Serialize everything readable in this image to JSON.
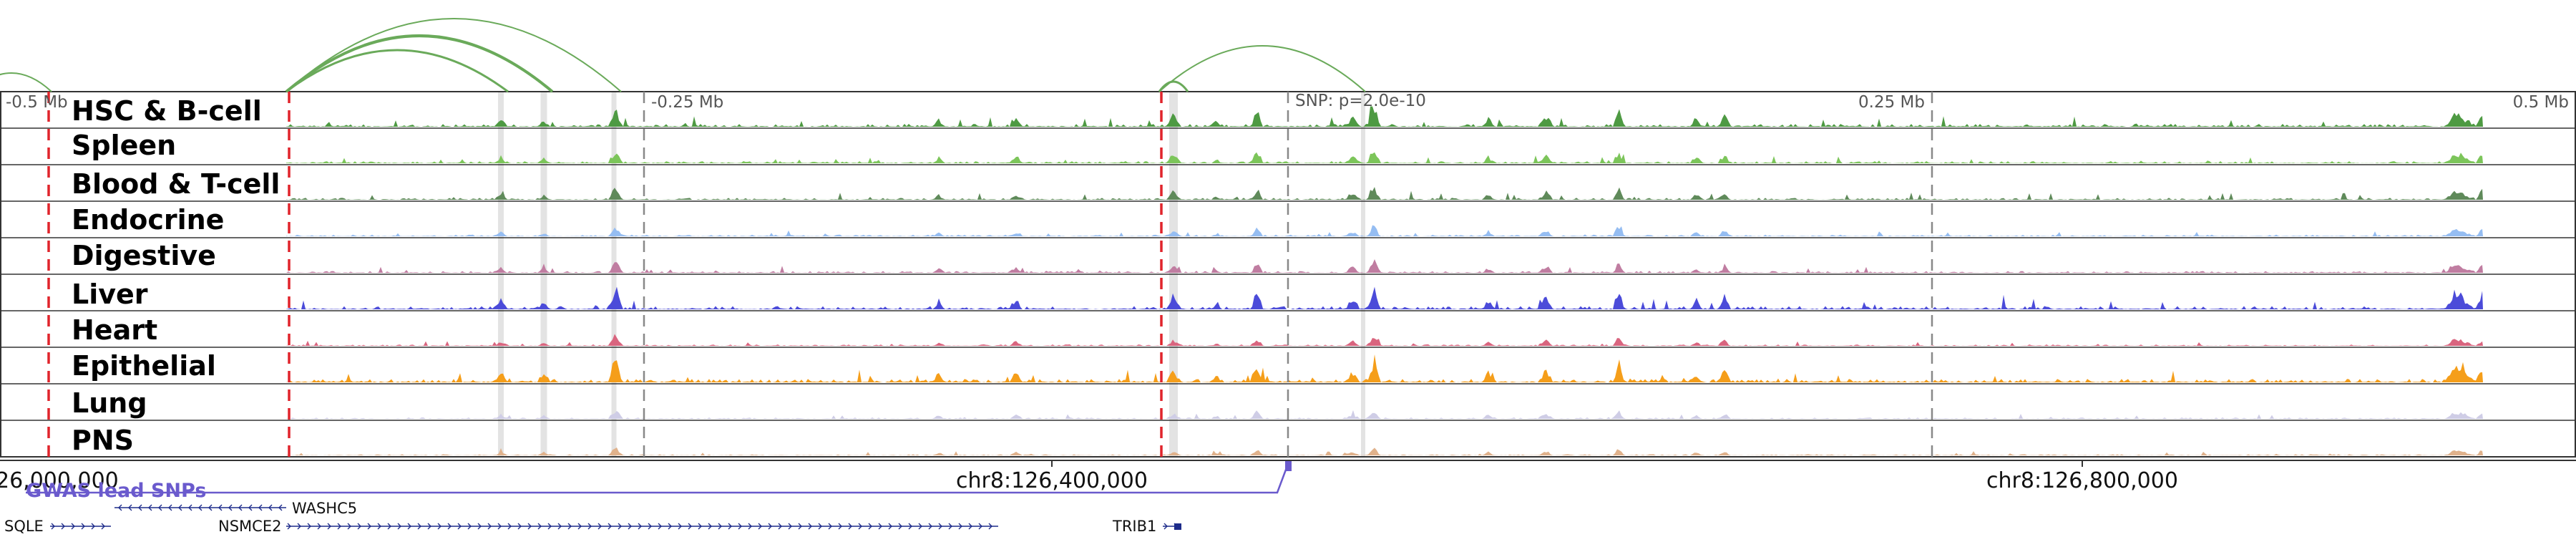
{
  "tracks": [
    {
      "name": "HSC & B-cell",
      "color": "#4e9a43"
    },
    {
      "name": "Spleen",
      "color": "#7cc55a"
    },
    {
      "name": "Blood & T-cell",
      "color": "#5f8a5a"
    },
    {
      "name": "Endocrine",
      "color": "#95bdf2"
    },
    {
      "name": "Digestive",
      "color": "#c07da1"
    },
    {
      "name": "Liver",
      "color": "#4b4bd9"
    },
    {
      "name": "Heart",
      "color": "#d9657f"
    },
    {
      "name": "Epithelial",
      "color": "#f59e1a"
    },
    {
      "name": "Lung",
      "color": "#cfcde6"
    },
    {
      "name": "PNS",
      "color": "#e0b28c"
    }
  ],
  "distance_labels": [
    "-0.5 Mb",
    "-0.25 Mb",
    "SNP: p=2.0e-10",
    "0.25 Mb",
    "0.5 Mb"
  ],
  "coordinates": [
    "26,000,000",
    "chr8:126,400,000",
    "chr8:126,800,000"
  ],
  "gwas_label": "GWAS lead SNPs",
  "genes": [
    "WASHC5",
    "SQLE",
    "NSMCE2",
    "TRIB1"
  ],
  "colors": {
    "frame": "#333333",
    "red_dash": "#e0242b",
    "gray_dash": "#888888",
    "highlight": "#d9d9d9",
    "arc": "#6aaa5a",
    "gwas": "#6a5acd"
  }
}
